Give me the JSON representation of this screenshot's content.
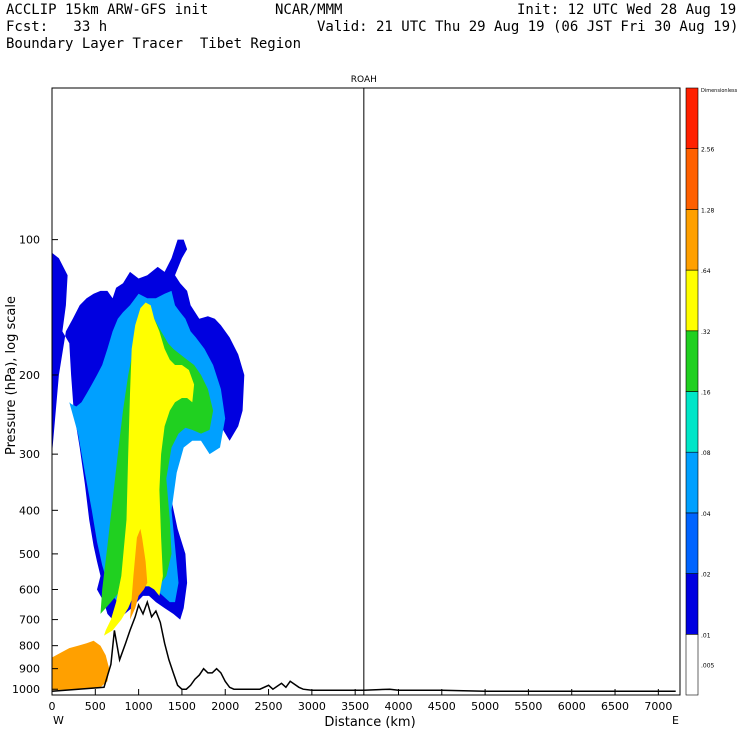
{
  "header": {
    "line1_left": "ACCLIP 15km ARW-GFS init",
    "line1_center": "NCAR/MMM",
    "line1_right": "Init: 12 UTC Wed 28 Aug 19",
    "line2_left": "Fcst:   33 h",
    "line2_right": "Valid: 21 UTC Thu 29 Aug 19 (06 JST Fri 30 Aug 19)",
    "line3_left": "Boundary Layer Tracer  Tibet Region"
  },
  "chart_data": {
    "type": "heatmap",
    "title": "",
    "xlabel": "Distance (km)",
    "ylabel": "Pressure (hPa), log scale",
    "x_ticks": [
      0,
      500,
      1000,
      1500,
      2000,
      2500,
      3000,
      3500,
      4000,
      4500,
      5000,
      5500,
      6000,
      6500,
      7000
    ],
    "y_ticks": [
      100,
      200,
      300,
      400,
      500,
      600,
      700,
      800,
      900,
      1000
    ],
    "xlim": [
      0,
      7250
    ],
    "ylim": [
      1030,
      46
    ],
    "y_scale": "log",
    "x_end_labels": {
      "left": "W",
      "right": "E"
    },
    "marker": {
      "label": "ROAH",
      "x": 3600
    },
    "colorbar": {
      "unit_label": "Dimensionless",
      "levels": [
        0.005,
        0.01,
        0.02,
        0.04,
        0.08,
        0.16,
        0.32,
        0.64,
        1.28,
        2.56
      ],
      "labels": [
        ".005",
        ".01",
        ".02",
        ".04",
        ".08",
        ".16",
        ".32",
        ".64",
        "1.28",
        "2.56"
      ],
      "colors": [
        "#ffffff",
        "#0000e0",
        "#0064ff",
        "#00a0ff",
        "#00e6c8",
        "#20d020",
        "#ffff00",
        "#ffa000",
        "#ff6000",
        "#ff2000"
      ]
    },
    "terrain": {
      "x": [
        0,
        600,
        680,
        720,
        780,
        850,
        900,
        960,
        1000,
        1050,
        1100,
        1150,
        1200,
        1250,
        1300,
        1350,
        1400,
        1450,
        1500,
        1550,
        1600,
        1650,
        1700,
        1750,
        1800,
        1850,
        1900,
        1950,
        2000,
        2050,
        2100,
        2150,
        2200,
        2400,
        2500,
        2550,
        2600,
        2650,
        2700,
        2750,
        2800,
        2850,
        2900,
        3000,
        3600,
        3900,
        4000,
        4500,
        5000,
        7200
      ],
      "p": [
        1010,
        990,
        880,
        740,
        860,
        790,
        740,
        690,
        650,
        680,
        640,
        690,
        670,
        710,
        790,
        860,
        920,
        980,
        1000,
        1000,
        980,
        950,
        930,
        900,
        920,
        920,
        900,
        920,
        960,
        990,
        1000,
        1000,
        1000,
        1000,
        980,
        1000,
        985,
        970,
        990,
        960,
        975,
        990,
        1000,
        1005,
        1005,
        1000,
        1005,
        1005,
        1010,
        1010
      ]
    },
    "contours": [
      {
        "level": 0.01,
        "x": [
          0,
          80,
          180,
          160,
          120,
          200,
          220,
          250,
          320,
          380,
          430,
          480,
          520,
          560,
          520,
          600,
          640,
          700,
          760,
          840,
          920,
          980,
          1050,
          1120,
          1200,
          1300,
          1400,
          1480,
          1520,
          1560,
          1540,
          1450,
          1380,
          1400,
          1500,
          1600,
          1700,
          1800,
          1950,
          2050,
          2150,
          2200,
          2220,
          2150,
          2050,
          1950,
          1880,
          1800,
          1700,
          1600,
          1560,
          1480,
          1420,
          1500,
          1560,
          1520,
          1450,
          1380,
          1300,
          1220,
          1100,
          1000,
          900,
          820,
          740,
          700,
          640,
          560,
          480,
          400,
          320,
          240,
          160,
          80,
          0
        ],
        "p": [
          107,
          110,
          120,
          140,
          160,
          170,
          200,
          240,
          290,
          350,
          420,
          480,
          520,
          560,
          600,
          640,
          680,
          700,
          700,
          680,
          660,
          640,
          620,
          620,
          640,
          660,
          680,
          700,
          660,
          580,
          500,
          440,
          380,
          330,
          280,
          260,
          255,
          260,
          260,
          280,
          260,
          240,
          200,
          180,
          165,
          155,
          150,
          148,
          150,
          140,
          130,
          125,
          120,
          110,
          105,
          100,
          100,
          110,
          118,
          115,
          120,
          122,
          118,
          125,
          128,
          135,
          130,
          130,
          132,
          135,
          140,
          150,
          160,
          200,
          300
        ]
      },
      {
        "level": 0.04,
        "x": [
          200,
          300,
          380,
          460,
          520,
          580,
          640,
          700,
          760,
          820,
          880,
          960,
          1040,
          1120,
          1200,
          1280,
          1360,
          1420,
          1460,
          1420,
          1380,
          1440,
          1520,
          1620,
          1720,
          1820,
          1940,
          2000,
          1950,
          1860,
          1760,
          1660,
          1600,
          1540,
          1480,
          1420,
          1380,
          1300,
          1200,
          1100,
          1000,
          900,
          820,
          760,
          700,
          640,
          580,
          520,
          460,
          400,
          340,
          280,
          220,
          200
        ],
        "p": [
          230,
          270,
          330,
          400,
          470,
          530,
          580,
          620,
          640,
          640,
          620,
          600,
          590,
          590,
          600,
          620,
          640,
          640,
          580,
          480,
          400,
          330,
          290,
          280,
          280,
          300,
          290,
          250,
          215,
          190,
          175,
          165,
          160,
          150,
          145,
          140,
          130,
          132,
          135,
          135,
          132,
          140,
          145,
          150,
          160,
          175,
          190,
          200,
          210,
          220,
          230,
          235,
          232,
          230
        ]
      },
      {
        "level": 0.16,
        "x": [
          560,
          620,
          680,
          740,
          800,
          860,
          940,
          1020,
          1100,
          1180,
          1260,
          1320,
          1380,
          1360,
          1320,
          1380,
          1460,
          1540,
          1620,
          1720,
          1820,
          1860,
          1800,
          1720,
          1640,
          1560,
          1480,
          1400,
          1340,
          1260,
          1180,
          1100,
          1020,
          940,
          880,
          820,
          760,
          700,
          640,
          580,
          560
        ],
        "p": [
          680,
          660,
          640,
          620,
          600,
          580,
          560,
          560,
          560,
          570,
          580,
          560,
          500,
          420,
          340,
          290,
          270,
          262,
          265,
          270,
          265,
          240,
          215,
          200,
          190,
          185,
          180,
          175,
          170,
          160,
          150,
          150,
          160,
          175,
          200,
          240,
          300,
          380,
          480,
          600,
          680
        ]
      },
      {
        "level": 0.32,
        "x": [
          600,
          700,
          800,
          880,
          940,
          1000,
          1060,
          1120,
          1180,
          1240,
          1280,
          1260,
          1240,
          1260,
          1300,
          1360,
          1420,
          1500,
          1560,
          1620,
          1640,
          1580,
          1500,
          1420,
          1360,
          1300,
          1240,
          1180,
          1140,
          1080,
          1020,
          960,
          920,
          900,
          880,
          860,
          800,
          740,
          680,
          620,
          600
        ],
        "p": [
          760,
          740,
          700,
          660,
          620,
          600,
          590,
          590,
          600,
          620,
          560,
          460,
          360,
          300,
          260,
          240,
          230,
          225,
          225,
          230,
          210,
          195,
          190,
          190,
          185,
          175,
          160,
          150,
          140,
          138,
          142,
          155,
          175,
          220,
          300,
          420,
          560,
          640,
          700,
          740,
          760
        ]
      },
      {
        "level": 0.64,
        "x": [
          0,
          200,
          400,
          560,
          640,
          660,
          620,
          560,
          480,
          400,
          300,
          200,
          100,
          0
        ],
        "p": [
          1005,
          1002,
          998,
          990,
          960,
          900,
          840,
          800,
          780,
          790,
          800,
          810,
          830,
          850
        ]
      },
      {
        "level": 0.64,
        "x": [
          900,
          960,
          1000,
          1060,
          1100,
          1080,
          1040,
          1020,
          980,
          940,
          900
        ],
        "p": [
          700,
          660,
          620,
          600,
          580,
          520,
          460,
          440,
          460,
          560,
          700
        ]
      }
    ]
  }
}
